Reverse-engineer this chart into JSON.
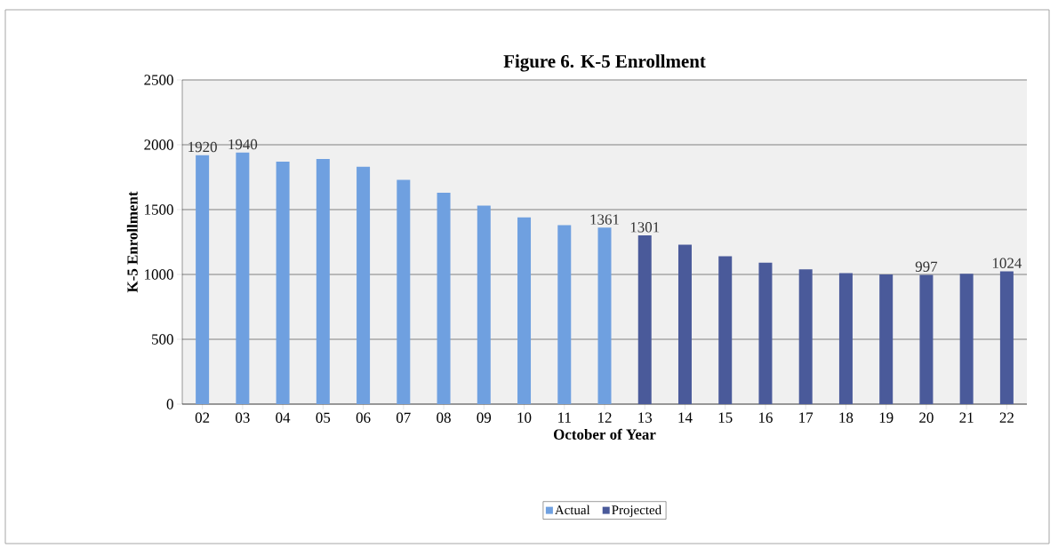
{
  "chart_data": {
    "type": "bar",
    "title": "Figure 6. K-5 Enrollment",
    "xlabel": "October of Year",
    "ylabel": "K-5 Enrollment",
    "categories": [
      "02",
      "03",
      "04",
      "05",
      "06",
      "07",
      "08",
      "09",
      "10",
      "11",
      "12",
      "13",
      "14",
      "15",
      "16",
      "17",
      "18",
      "19",
      "20",
      "21",
      "22"
    ],
    "series": [
      {
        "name": "Actual",
        "color": "#6fa0e0",
        "values": [
          1920,
          1940,
          1870,
          1890,
          1830,
          1730,
          1630,
          1530,
          1440,
          1380,
          1361,
          null,
          null,
          null,
          null,
          null,
          null,
          null,
          null,
          null,
          null
        ],
        "value_labels": [
          "1920",
          "1940",
          null,
          null,
          null,
          null,
          null,
          null,
          null,
          null,
          "1361",
          null,
          null,
          null,
          null,
          null,
          null,
          null,
          null,
          null,
          null
        ]
      },
      {
        "name": "Projected",
        "color": "#4a5a9a",
        "values": [
          null,
          null,
          null,
          null,
          null,
          null,
          null,
          null,
          null,
          null,
          null,
          1301,
          1230,
          1140,
          1090,
          1040,
          1010,
          1000,
          997,
          1005,
          1024
        ],
        "value_labels": [
          null,
          null,
          null,
          null,
          null,
          null,
          null,
          null,
          null,
          null,
          null,
          "1301",
          null,
          null,
          null,
          null,
          null,
          null,
          "997",
          null,
          "1024"
        ]
      }
    ],
    "ylim": [
      0,
      2500
    ],
    "yticks": [
      0,
      500,
      1000,
      1500,
      2000,
      2500
    ],
    "grid": "y",
    "legend": "bottom"
  }
}
